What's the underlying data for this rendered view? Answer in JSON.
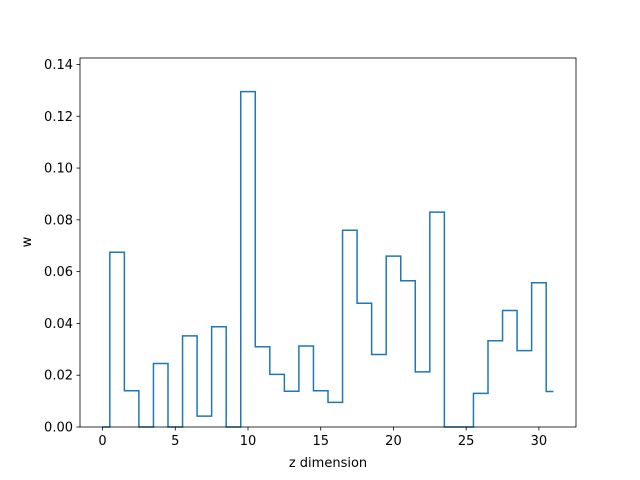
{
  "chart_data": {
    "type": "line",
    "drawstyle": "steps-mid",
    "xlabel": "z dimension",
    "ylabel": "w",
    "xlim": [
      -1.55,
      32.55
    ],
    "ylim": [
      0,
      0.1425
    ],
    "xticks": [
      0,
      5,
      10,
      15,
      20,
      25,
      30
    ],
    "xtick_labels": [
      "0",
      "5",
      "10",
      "15",
      "20",
      "25",
      "30"
    ],
    "yticks": [
      0.0,
      0.02,
      0.04,
      0.06,
      0.08,
      0.1,
      0.12,
      0.14
    ],
    "ytick_labels": [
      "0.00",
      "0.02",
      "0.04",
      "0.06",
      "0.08",
      "0.10",
      "0.12",
      "0.14"
    ],
    "grid": false,
    "series_color": "#1f77b4",
    "x": [
      0,
      1,
      2,
      3,
      4,
      5,
      6,
      7,
      8,
      9,
      10,
      11,
      12,
      13,
      14,
      15,
      16,
      17,
      18,
      19,
      20,
      21,
      22,
      23,
      24,
      25,
      26,
      27,
      28,
      29,
      30,
      31
    ],
    "values": [
      0.0,
      0.0675,
      0.014,
      0.0,
      0.0245,
      0.0,
      0.0352,
      0.0042,
      0.0387,
      0.0,
      0.1295,
      0.031,
      0.0203,
      0.0138,
      0.0313,
      0.014,
      0.0095,
      0.076,
      0.0478,
      0.028,
      0.066,
      0.0565,
      0.0213,
      0.083,
      0.0,
      0.0,
      0.013,
      0.0333,
      0.045,
      0.0295,
      0.0557,
      0.0137
    ]
  }
}
